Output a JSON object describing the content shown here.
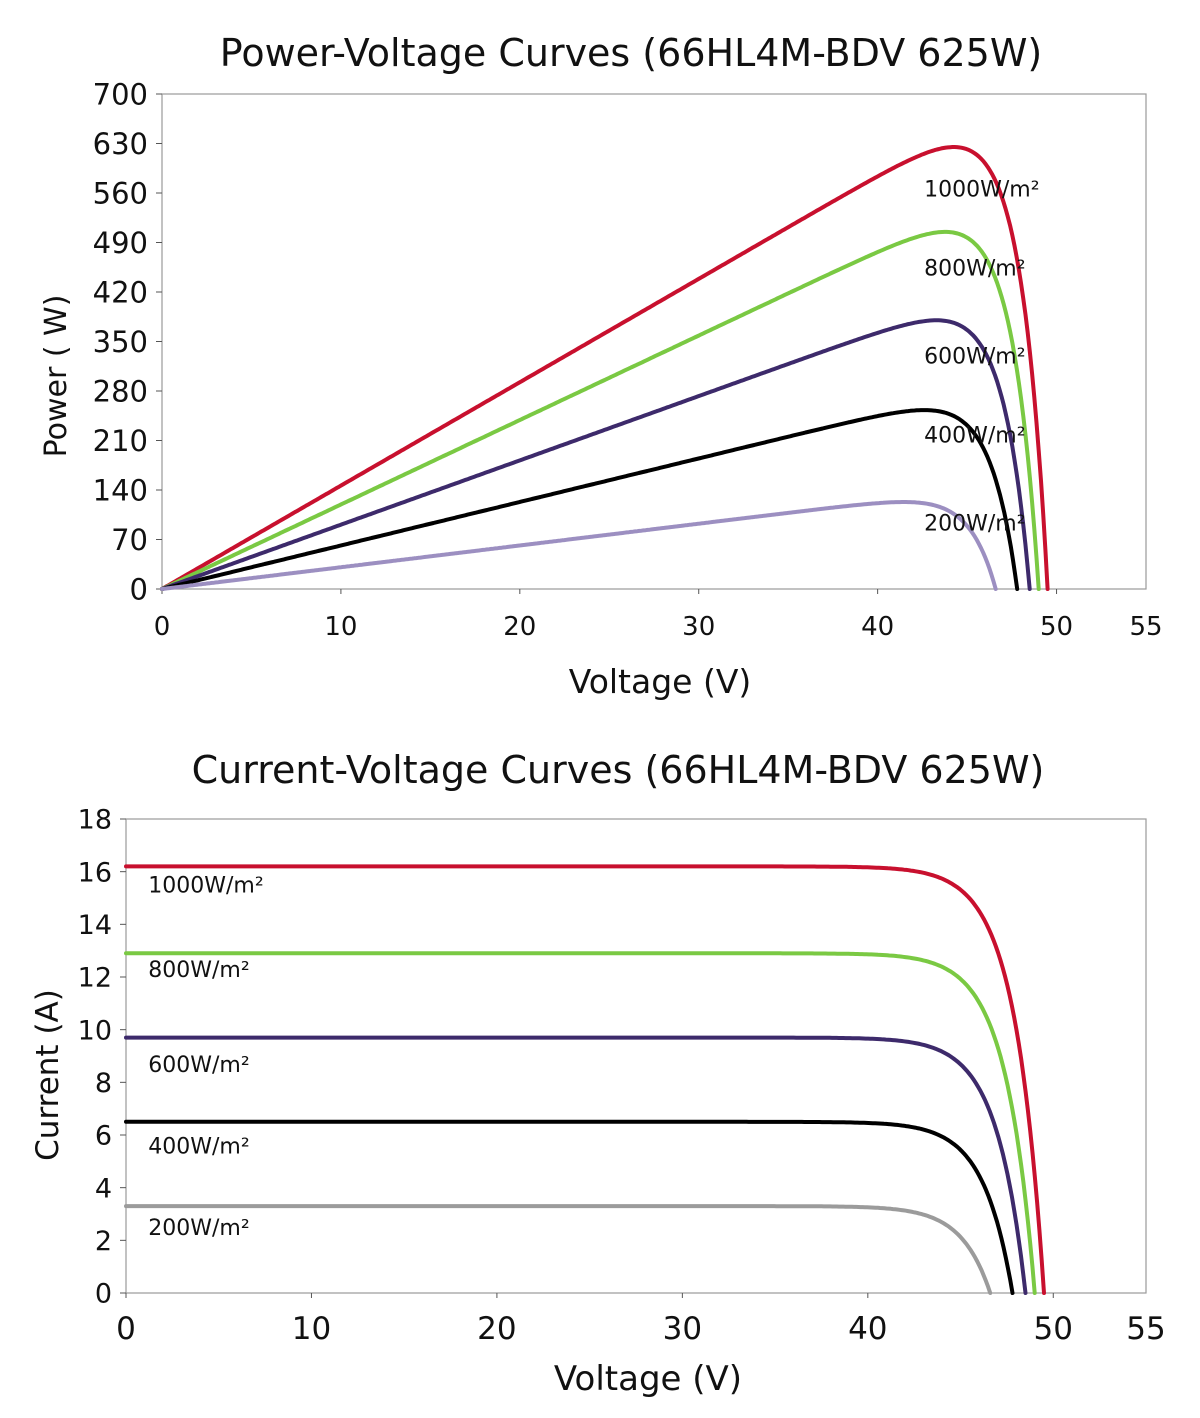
{
  "chart_data": [
    {
      "type": "line",
      "title": "Power-Voltage Curves (66HL4M-BDV 625W)",
      "xlabel": "Voltage (V)",
      "ylabel": "Power ( W)",
      "xlim": [
        0,
        55
      ],
      "ylim": [
        0,
        700
      ],
      "xticks": [
        0,
        10,
        20,
        30,
        40,
        50,
        55
      ],
      "yticks": [
        0,
        70,
        140,
        210,
        280,
        350,
        420,
        490,
        560,
        630,
        700
      ],
      "grid": false,
      "series": [
        {
          "name": "1000W/m²",
          "color": "#c8102e",
          "vmp": 40.8,
          "pmax": 625,
          "voc": 49.5
        },
        {
          "name": "800W/m²",
          "color": "#7ac943",
          "vmp": 41.0,
          "pmax": 505,
          "voc": 49.0
        },
        {
          "name": "600W/m²",
          "color": "#3d2a6b",
          "vmp": 41.0,
          "pmax": 380,
          "voc": 48.5
        },
        {
          "name": "400W/m²",
          "color": "#000000",
          "vmp": 41.0,
          "pmax": 253,
          "voc": 47.8
        },
        {
          "name": "200W/m²",
          "color": "#9c8fc1",
          "vmp": 40.8,
          "pmax": 123,
          "voc": 46.6
        }
      ],
      "annotations": [
        {
          "text": "1000W/m²",
          "x": 42.6,
          "y": 555
        },
        {
          "text": "800W/m²",
          "x": 42.6,
          "y": 443
        },
        {
          "text": "600W/m²",
          "x": 42.6,
          "y": 319
        },
        {
          "text": "400W/m²",
          "x": 42.6,
          "y": 207
        },
        {
          "text": "200W/m²",
          "x": 42.6,
          "y": 83
        }
      ]
    },
    {
      "type": "line",
      "title": "Current-Voltage Curves (66HL4M-BDV 625W)",
      "xlabel": "Voltage (V)",
      "ylabel": "Current (A)",
      "xlim": [
        0,
        55
      ],
      "ylim": [
        0,
        18
      ],
      "xticks": [
        0,
        10,
        20,
        30,
        40,
        50,
        55
      ],
      "yticks": [
        0,
        2,
        4,
        6,
        8,
        10,
        12,
        14,
        16,
        18
      ],
      "grid": false,
      "series": [
        {
          "name": "1000W/m²",
          "color": "#c8102e",
          "isc": 16.2,
          "voc": 49.5
        },
        {
          "name": "800W/m²",
          "color": "#7ac943",
          "isc": 12.9,
          "voc": 49.0
        },
        {
          "name": "600W/m²",
          "color": "#3d2a6b",
          "isc": 9.7,
          "voc": 48.5
        },
        {
          "name": "400W/m²",
          "color": "#000000",
          "isc": 6.5,
          "voc": 47.8
        },
        {
          "name": "200W/m²",
          "color": "#9b9b9b",
          "isc": 3.3,
          "voc": 46.6
        }
      ],
      "annotations": [
        {
          "text": "1000W/m²",
          "x": 1.2,
          "y": 15.2
        },
        {
          "text": "800W/m²",
          "x": 1.2,
          "y": 12.0
        },
        {
          "text": "600W/m²",
          "x": 1.2,
          "y": 8.4
        },
        {
          "text": "400W/m²",
          "x": 1.2,
          "y": 5.3
        },
        {
          "text": "200W/m²",
          "x": 1.2,
          "y": 2.2
        }
      ]
    }
  ]
}
